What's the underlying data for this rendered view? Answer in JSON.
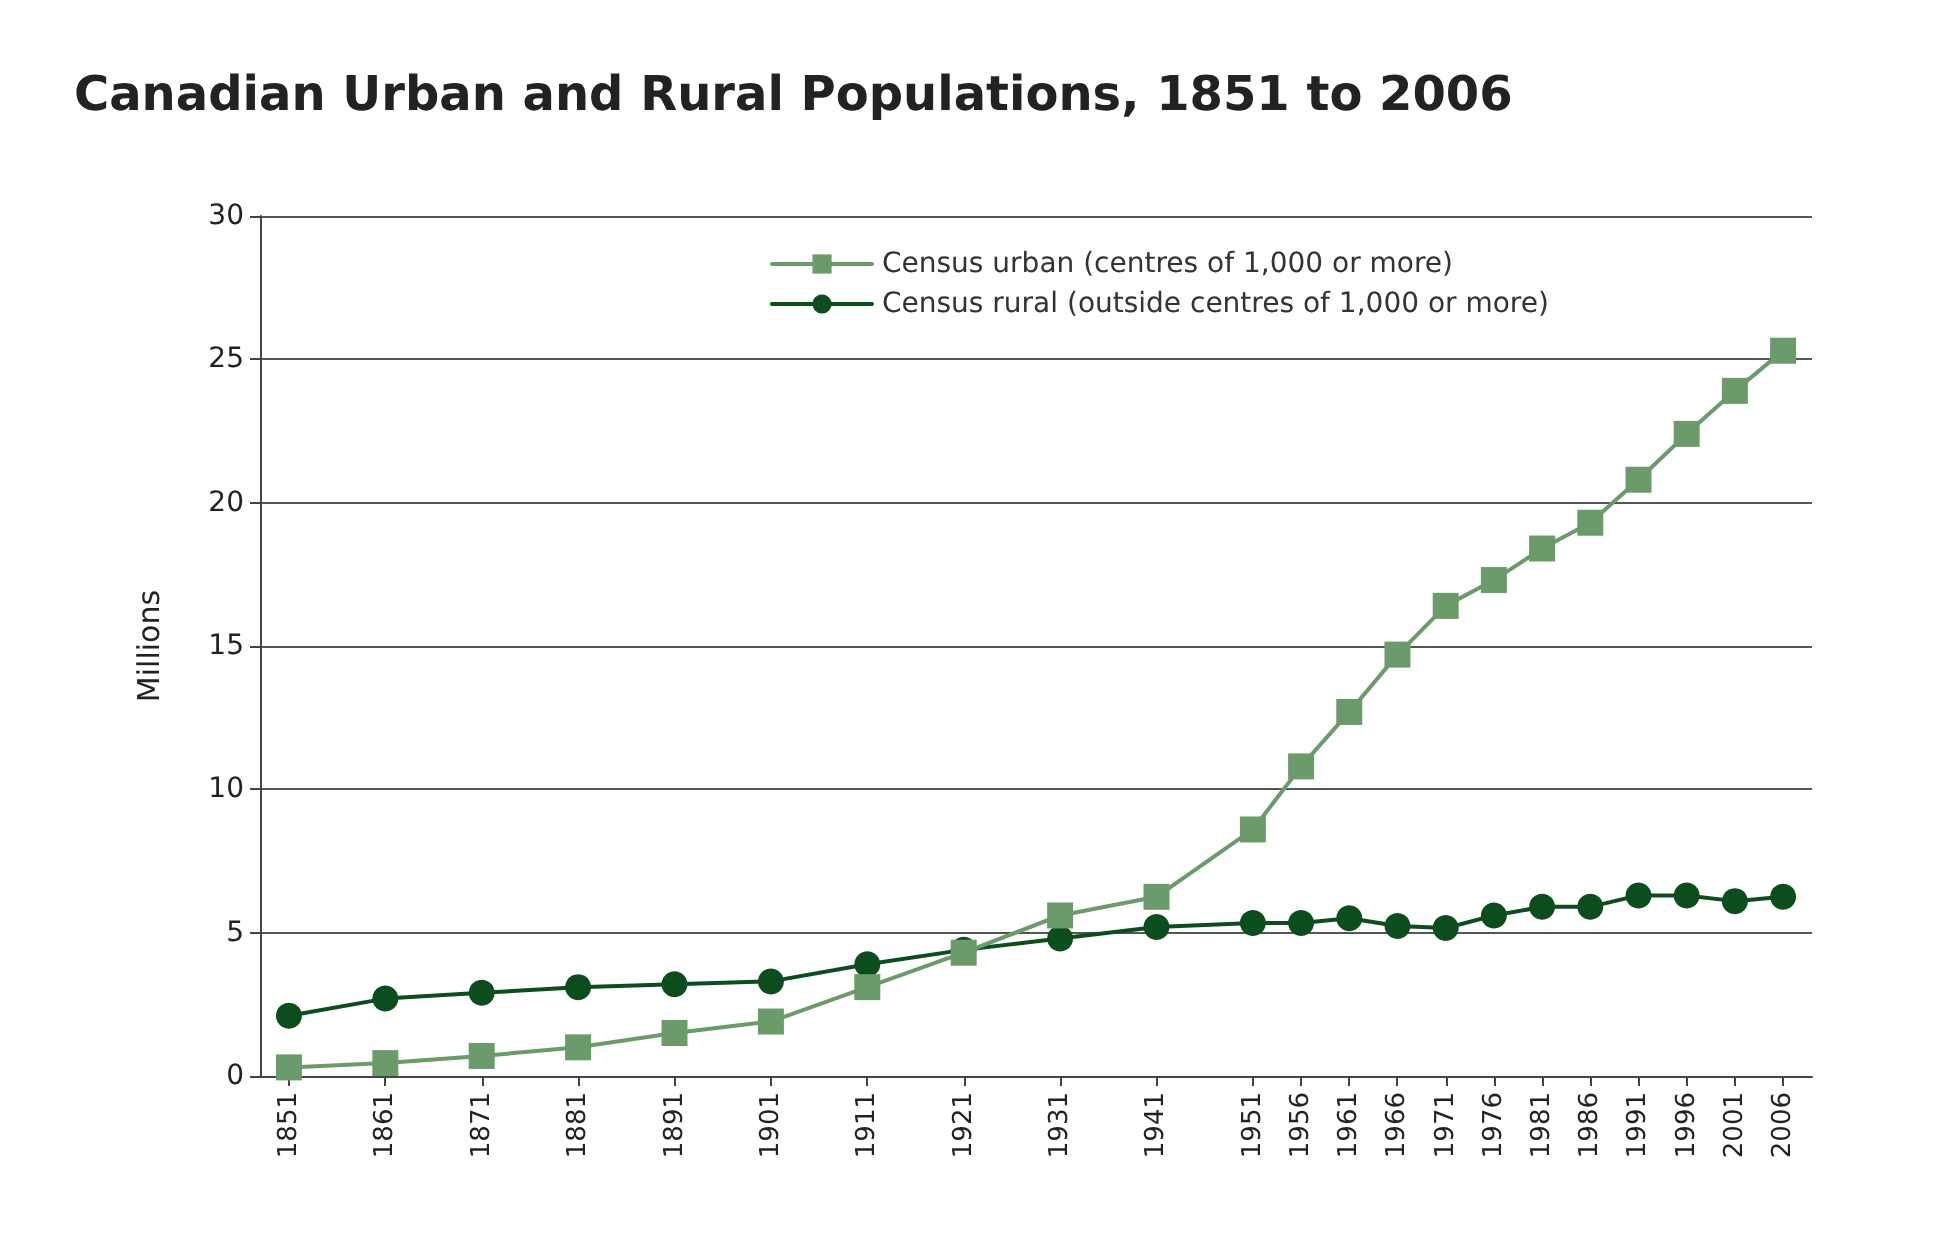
{
  "chart_data": {
    "type": "line",
    "title": "Canadian Urban and Rural Populations, 1851 to 2006",
    "ylabel": "Millions",
    "x": [
      1851,
      1861,
      1871,
      1881,
      1891,
      1901,
      1911,
      1921,
      1931,
      1941,
      1951,
      1956,
      1961,
      1966,
      1971,
      1976,
      1981,
      1986,
      1991,
      1996,
      2001,
      2006
    ],
    "series": [
      {
        "name": "Census urban (centres of 1,000 or more)",
        "color": "#6b9a6b",
        "marker": "square",
        "values": [
          0.3,
          0.45,
          0.7,
          1.0,
          1.5,
          1.9,
          3.1,
          4.3,
          5.6,
          6.25,
          8.6,
          10.8,
          12.7,
          14.7,
          16.4,
          17.3,
          18.4,
          19.3,
          20.8,
          22.4,
          23.9,
          25.3
        ]
      },
      {
        "name": "Census rural (outside centres of 1,000 or more)",
        "color": "#0b4d1c",
        "marker": "circle",
        "values": [
          2.1,
          2.7,
          2.9,
          3.1,
          3.2,
          3.3,
          3.9,
          4.4,
          4.8,
          5.2,
          5.34,
          5.34,
          5.5,
          5.23,
          5.16,
          5.6,
          5.9,
          5.9,
          6.3,
          6.3,
          6.1,
          6.25
        ]
      }
    ],
    "xlim": [
      1848,
      2009
    ],
    "xticks": [
      1851,
      1861,
      1871,
      1881,
      1891,
      1901,
      1911,
      1921,
      1931,
      1941,
      1951,
      1956,
      1961,
      1966,
      1971,
      1976,
      1981,
      1986,
      1991,
      1996,
      2001,
      2006
    ],
    "ylim": [
      0,
      30
    ],
    "yticks": [
      0,
      5,
      10,
      15,
      20,
      25,
      30
    ],
    "grid": "y",
    "legend": "top right",
    "line_style": "solid"
  }
}
